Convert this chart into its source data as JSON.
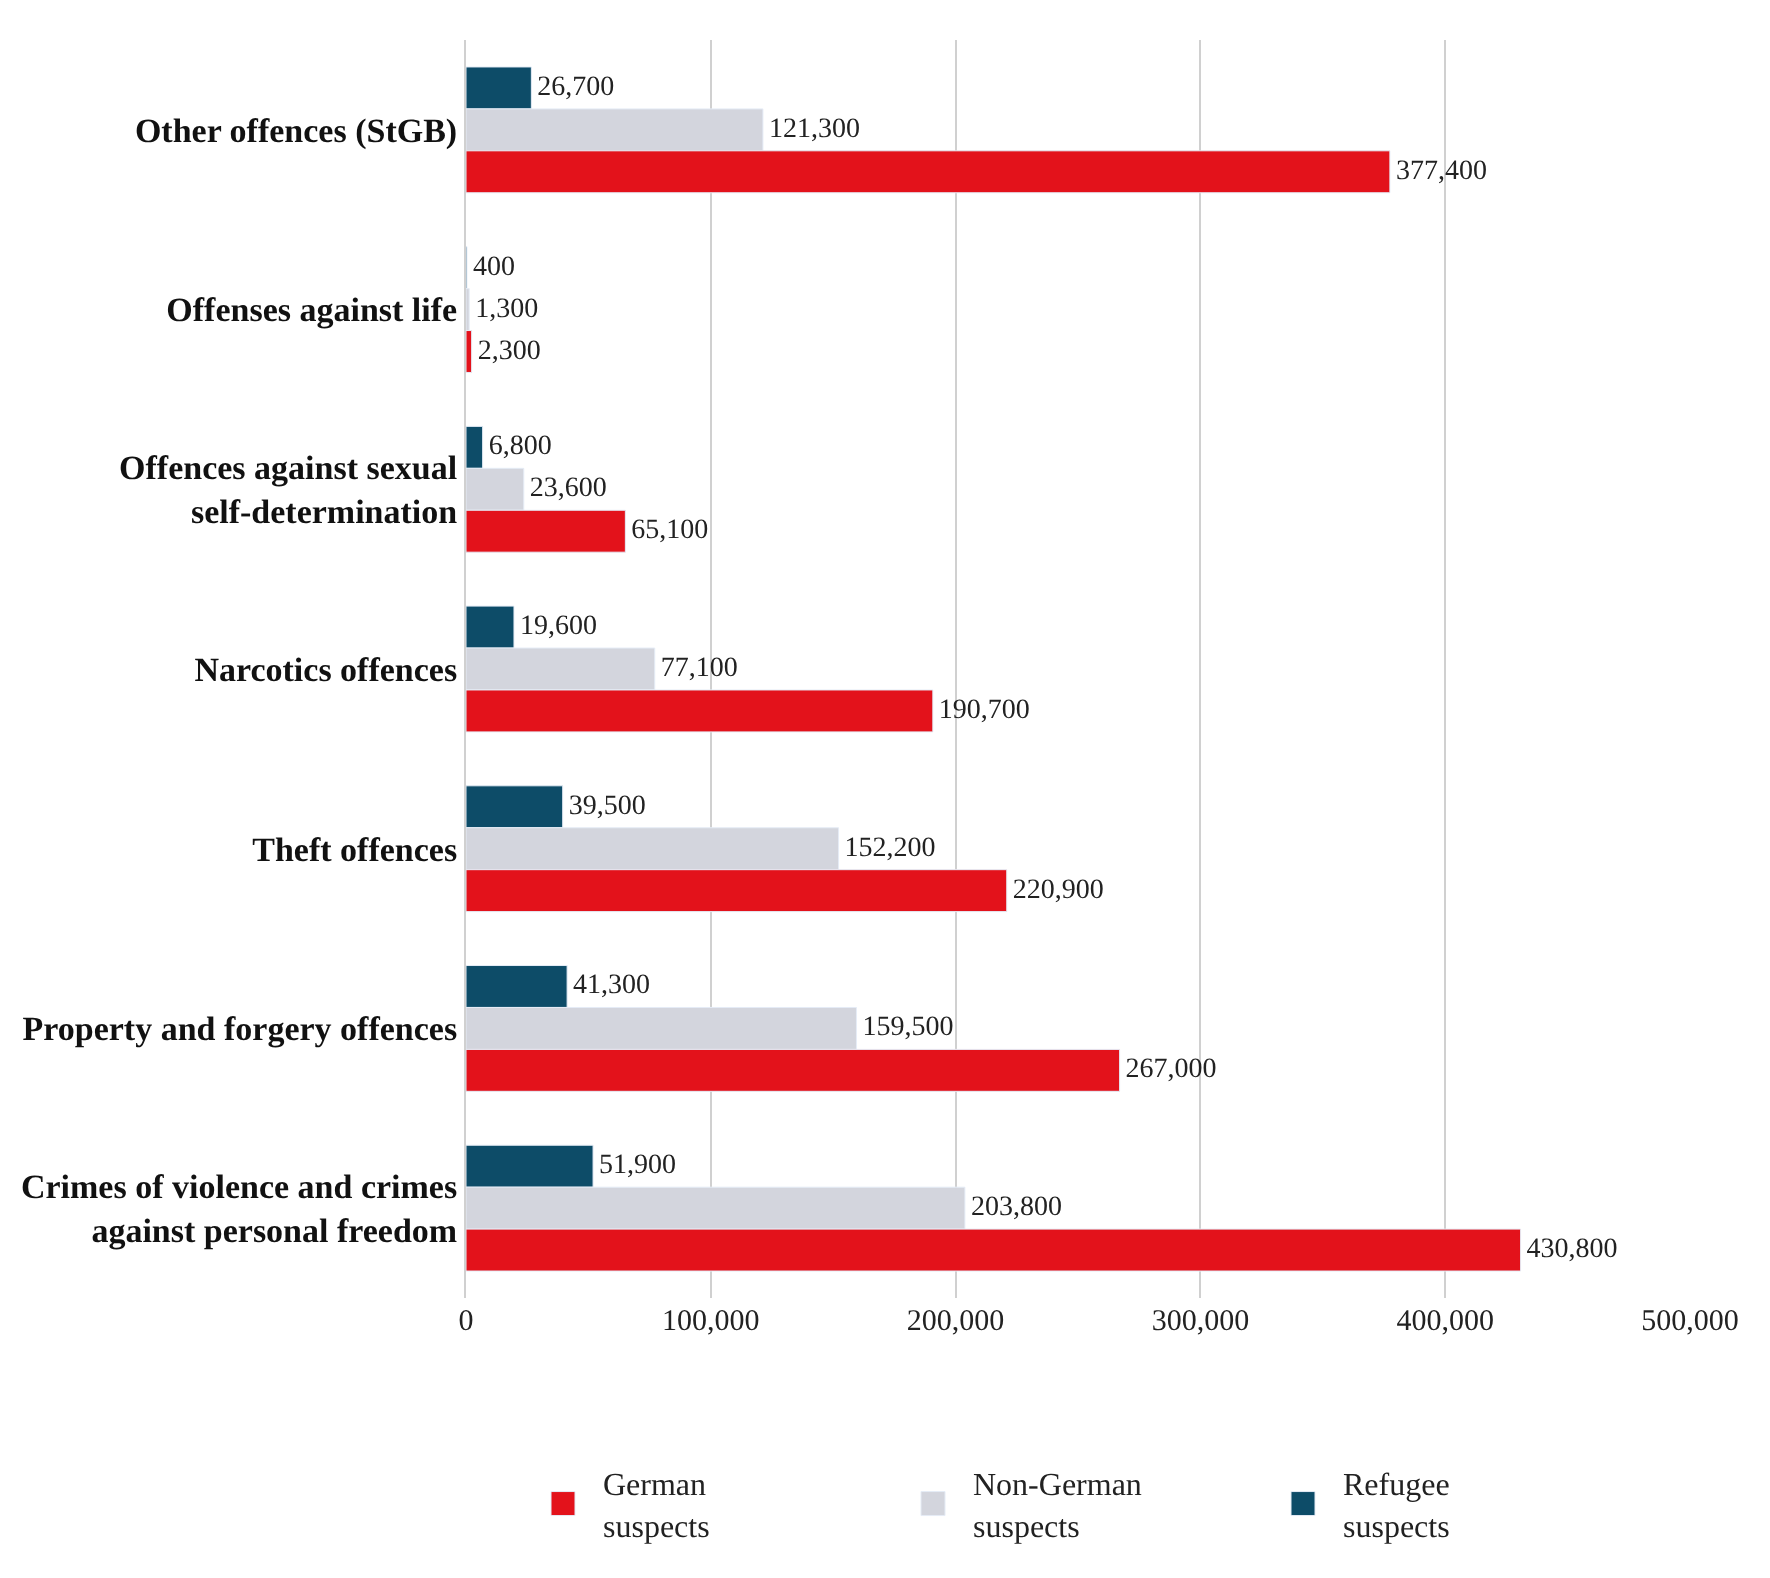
{
  "chart_data": {
    "type": "bar",
    "orientation": "horizontal",
    "categories": [
      "Other offences (StGB)",
      "Offenses against life",
      "Offences against sexual\nself-determination",
      "Narcotics offences",
      "Theft offences",
      "Property and forgery offences",
      "Crimes of violence and crimes\nagainst personal freedom"
    ],
    "series": [
      {
        "name": "Refugee\nsuspects",
        "color": "#0d4c68",
        "values": [
          26700,
          400,
          6800,
          19600,
          39500,
          41300,
          51900
        ],
        "value_labels": [
          "26,700",
          "400",
          "6,800",
          "19,600",
          "39,500",
          "41,300",
          "51,900"
        ]
      },
      {
        "name": "Non-German\nsuspects",
        "color": "#d3d5dd",
        "values": [
          121300,
          1300,
          23600,
          77100,
          152200,
          159500,
          203800
        ],
        "value_labels": [
          "121,300",
          "1,300",
          "23,600",
          "77,100",
          "152,200",
          "159,500",
          "203,800"
        ]
      },
      {
        "name": "German\nsuspects",
        "color": "#e3121b",
        "values": [
          377400,
          2300,
          65100,
          190700,
          220900,
          267000,
          430800
        ],
        "value_labels": [
          "377,400",
          "2,300",
          "65,100",
          "190,700",
          "220,900",
          "267,000",
          "430,800"
        ]
      }
    ],
    "xlim": [
      0,
      500000
    ],
    "xticks": [
      {
        "value": 0,
        "label": "0"
      },
      {
        "value": 100000,
        "label": "100,000"
      },
      {
        "value": 200000,
        "label": "200,000"
      },
      {
        "value": 300000,
        "label": "300,000"
      },
      {
        "value": 400000,
        "label": "400,000"
      },
      {
        "value": 500000,
        "label": "500,000"
      }
    ],
    "grid": "x",
    "legend": "bottom"
  }
}
